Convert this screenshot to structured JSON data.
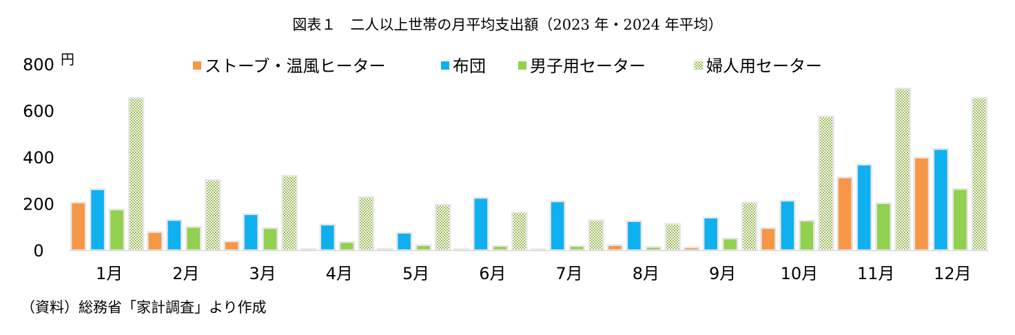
{
  "title": "図表１　二人以上世帯の月平均支出額（2023 年・2024 年平均）",
  "source": "（資料）総務省「家計調査」より作成",
  "chart_data": {
    "type": "bar",
    "y_unit": "円",
    "ylim": [
      0,
      800
    ],
    "yticks": [
      0,
      200,
      400,
      600,
      800
    ],
    "grid": false,
    "legend_position": "top",
    "categories": [
      "1月",
      "2月",
      "3月",
      "4月",
      "5月",
      "6月",
      "7月",
      "8月",
      "9月",
      "10月",
      "11月",
      "12月"
    ],
    "series": [
      {
        "name": "ストーブ・温風ヒーター",
        "color": "#f79646",
        "values": [
          205,
          78,
          38,
          5,
          6,
          4,
          4,
          22,
          12,
          95,
          313,
          398
        ]
      },
      {
        "name": "布団",
        "color": "#0fb0f0",
        "values": [
          262,
          130,
          155,
          110,
          75,
          225,
          210,
          125,
          140,
          213,
          368,
          435
        ]
      },
      {
        "name": "男子用セーター",
        "color": "#92d050",
        "values": [
          175,
          100,
          95,
          35,
          22,
          18,
          18,
          14,
          50,
          127,
          202,
          263
        ]
      },
      {
        "name": "婦人用セーター",
        "color": "#d7e4bd",
        "pattern": "checker",
        "values": [
          655,
          302,
          320,
          228,
          195,
          162,
          128,
          113,
          205,
          575,
          695,
          655
        ]
      }
    ]
  }
}
